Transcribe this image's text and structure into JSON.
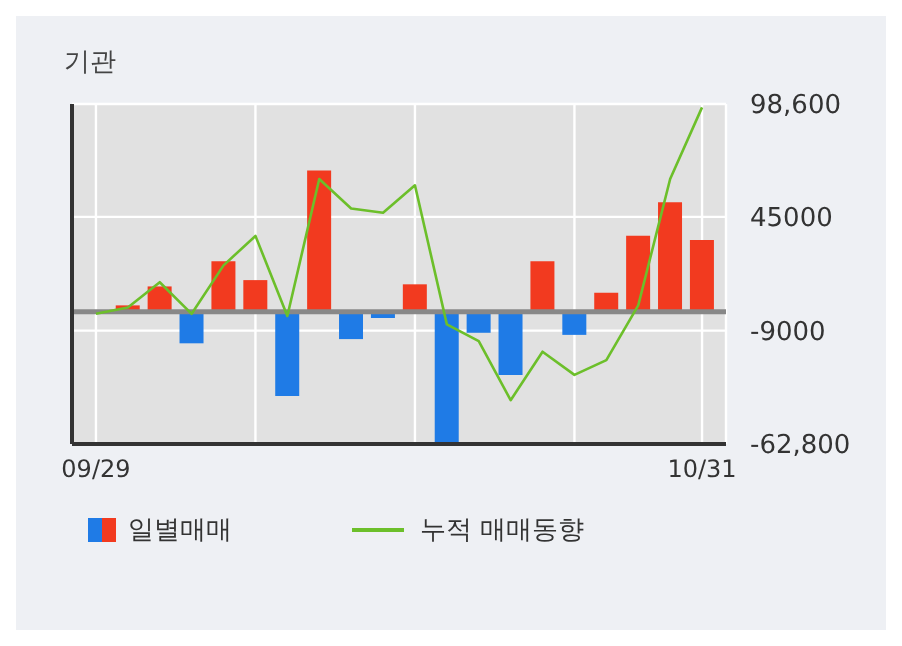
{
  "chart_data": {
    "type": "bar",
    "title": "기관",
    "categories": [
      "09/29",
      null,
      null,
      null,
      null,
      null,
      null,
      null,
      null,
      null,
      null,
      null,
      null,
      null,
      null,
      null,
      null,
      null,
      null,
      "10/31"
    ],
    "series": [
      {
        "name": "일별매매",
        "colors": [
          "#f23a1f",
          "#f23a1f",
          "#f23a1f",
          "#1f7be6",
          "#f23a1f",
          "#f23a1f",
          "#1f7be6",
          "#f23a1f",
          "#1f7be6",
          "#1f7be6",
          "#f23a1f",
          "#1f7be6",
          "#1f7be6",
          "#1f7be6",
          "#f23a1f",
          "#1f7be6",
          "#f23a1f",
          "#f23a1f",
          "#f23a1f",
          "#f23a1f"
        ],
        "values": [
          0,
          3000,
          12000,
          -15000,
          24000,
          15000,
          -40000,
          67000,
          -13000,
          -3000,
          13000,
          -62000,
          -10000,
          -30000,
          24000,
          -11000,
          9000,
          36000,
          52000,
          34000
        ]
      },
      {
        "name": "누적 매매동향",
        "type": "line",
        "color": "#6cbf2a",
        "values": [
          -1000,
          2000,
          14000,
          -1000,
          22000,
          36000,
          -2000,
          63000,
          49000,
          47000,
          60000,
          -6000,
          -14000,
          -42000,
          -19000,
          -30000,
          -23000,
          3000,
          63000,
          97000
        ]
      }
    ],
    "ylim": [
      -62800,
      98600
    ],
    "yticks": [
      {
        "value": 98600,
        "label": "98,600"
      },
      {
        "value": 45000,
        "label": "45000"
      },
      {
        "value": -9000,
        "label": "-9000"
      },
      {
        "value": -62800,
        "label": "-62,800"
      }
    ],
    "grid": true,
    "legend": "bottom",
    "marker": "none"
  }
}
